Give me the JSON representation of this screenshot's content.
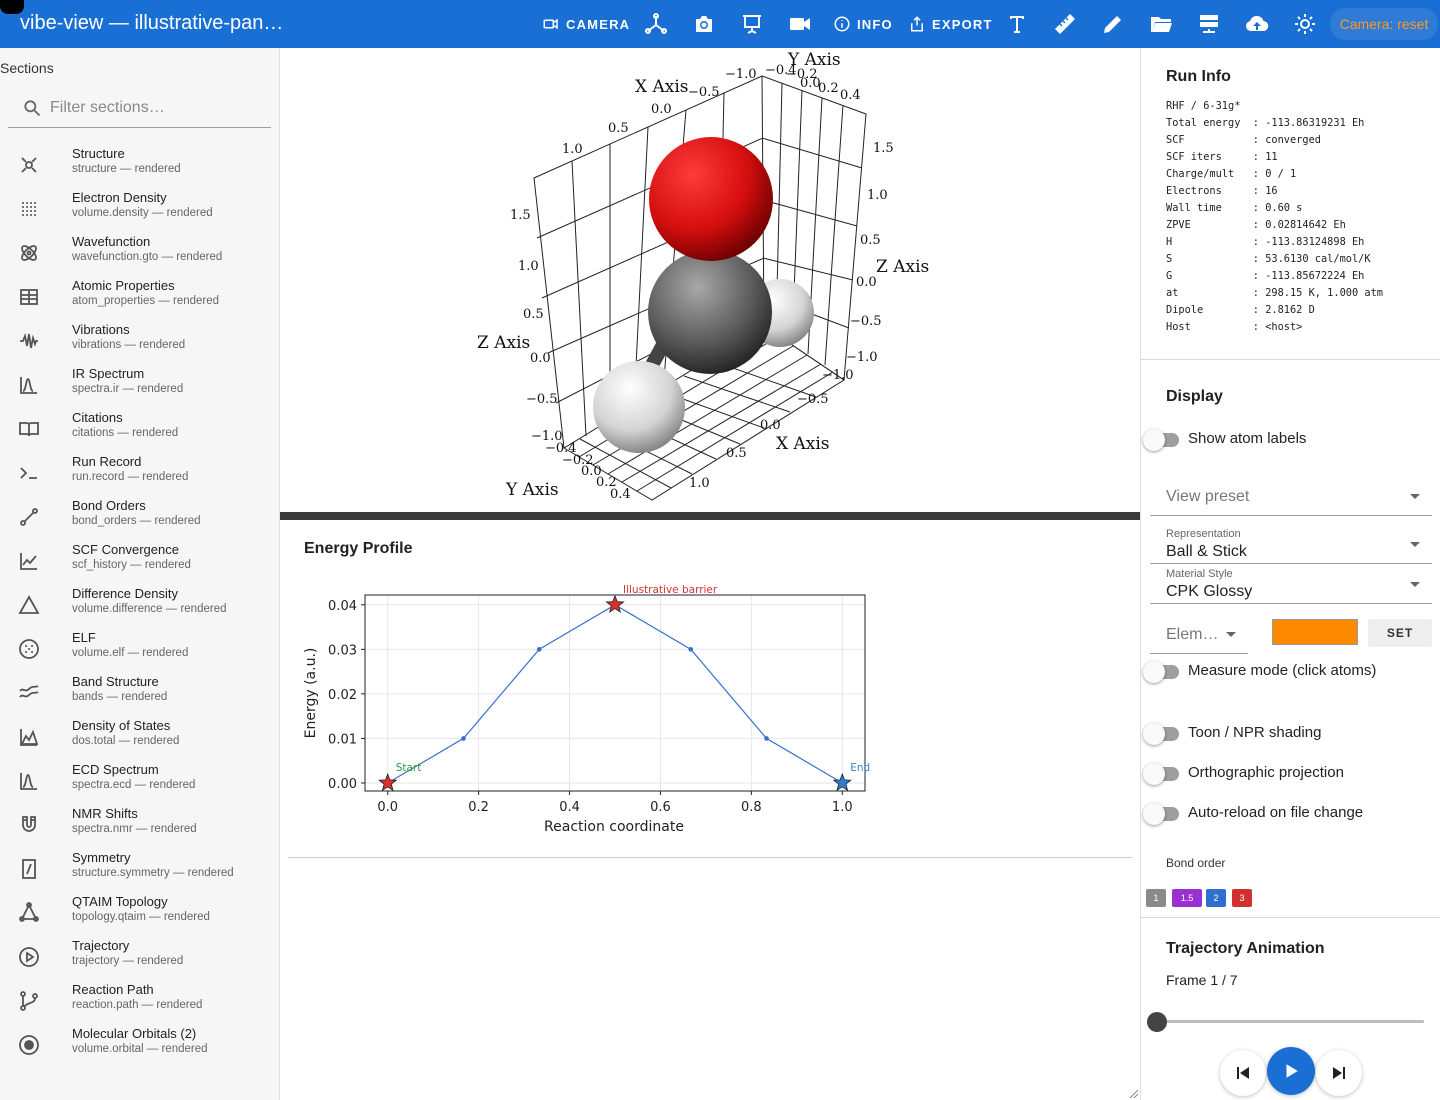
{
  "app": {
    "title": "vibe-view — illustrative-pan…"
  },
  "toolbar": {
    "camera_label": "CAMERA",
    "info_label": "INFO",
    "export_label": "EXPORT",
    "camera_reset_label": "Camera: reset",
    "icons": [
      "video-camera-icon",
      "axes-icon",
      "camera-icon",
      "presentation-icon",
      "record-icon",
      "info-icon",
      "export-icon",
      "text-icon",
      "ruler-icon",
      "pencil-icon",
      "folder-open-icon",
      "server-icon",
      "cloud-upload-icon",
      "brightness-icon"
    ]
  },
  "sidebar": {
    "title": "Sections",
    "filter_placeholder": "Filter sections…",
    "items": [
      {
        "name": "Structure",
        "sub": "structure — rendered",
        "icon": "atom-structure-icon"
      },
      {
        "name": "Electron Density",
        "sub": "volume.density — rendered",
        "icon": "dot-grid-icon"
      },
      {
        "name": "Wavefunction",
        "sub": "wavefunction.gto — rendered",
        "icon": "atom-orbit-icon"
      },
      {
        "name": "Atomic Properties",
        "sub": "atom_properties — rendered",
        "icon": "table-icon"
      },
      {
        "name": "Vibrations",
        "sub": "vibrations — rendered",
        "icon": "waveform-icon"
      },
      {
        "name": "IR Spectrum",
        "sub": "spectra.ir — rendered",
        "icon": "peak-chart-icon"
      },
      {
        "name": "Citations",
        "sub": "citations — rendered",
        "icon": "book-open-icon"
      },
      {
        "name": "Run Record",
        "sub": "run.record — rendered",
        "icon": "terminal-icon"
      },
      {
        "name": "Bond Orders",
        "sub": "bond_orders — rendered",
        "icon": "bond-icon"
      },
      {
        "name": "SCF Convergence",
        "sub": "scf_history — rendered",
        "icon": "line-chart-icon"
      },
      {
        "name": "Difference Density",
        "sub": "volume.difference — rendered",
        "icon": "triangle-icon"
      },
      {
        "name": "ELF",
        "sub": "volume.elf — rendered",
        "icon": "dotted-circle-icon"
      },
      {
        "name": "Band Structure",
        "sub": "bands — rendered",
        "icon": "bands-icon"
      },
      {
        "name": "Density of States",
        "sub": "dos.total — rendered",
        "icon": "area-chart-icon"
      },
      {
        "name": "ECD Spectrum",
        "sub": "spectra.ecd — rendered",
        "icon": "peak-chart-icon"
      },
      {
        "name": "NMR Shifts",
        "sub": "spectra.nmr — rendered",
        "icon": "magnet-icon"
      },
      {
        "name": "Symmetry",
        "sub": "structure.symmetry — rendered",
        "icon": "symmetry-icon"
      },
      {
        "name": "QTAIM Topology",
        "sub": "topology.qtaim — rendered",
        "icon": "topology-icon"
      },
      {
        "name": "Trajectory",
        "sub": "trajectory — rendered",
        "icon": "play-circle-icon"
      },
      {
        "name": "Reaction Path",
        "sub": "reaction.path — rendered",
        "icon": "branch-icon"
      },
      {
        "name": "Molecular Orbitals (2)",
        "sub": "volume.orbital — rendered",
        "icon": "orbital-icon"
      }
    ]
  },
  "viewer": {
    "axis_titles": {
      "x": "X Axis",
      "y": "Y Axis",
      "z": "Z Axis"
    },
    "colors": {
      "oxygen": "#e01010",
      "carbon": "#555555",
      "hydrogen": "#e8e8e8"
    }
  },
  "energy_profile": {
    "title": "Energy Profile",
    "chart_data": {
      "type": "line",
      "title": "",
      "xlabel": "Reaction coordinate",
      "ylabel": "Energy (a.u.)",
      "xlim": [
        -0.05,
        1.05
      ],
      "ylim": [
        -0.0018,
        0.0422
      ],
      "x": [
        0.0,
        0.1667,
        0.3333,
        0.5,
        0.6667,
        0.8333,
        1.0
      ],
      "y": [
        0.0,
        0.01,
        0.03,
        0.04,
        0.03,
        0.01,
        0.0
      ],
      "x_ticks": [
        0.0,
        0.2,
        0.4,
        0.6,
        0.8,
        1.0
      ],
      "y_ticks": [
        0.0,
        0.01,
        0.02,
        0.03,
        0.04
      ],
      "x_tick_labels": [
        "0.0",
        "0.2",
        "0.4",
        "0.6",
        "0.8",
        "1.0"
      ],
      "y_tick_labels": [
        "0.00",
        "0.01",
        "0.02",
        "0.03",
        "0.04"
      ],
      "grid": true,
      "line_color": "#3a6fd0",
      "annotations": [
        {
          "label": "Start",
          "x": 0.0,
          "y": 0.0,
          "color": "#2e9b3a",
          "marker_color": "#d63030"
        },
        {
          "label": "Illustrative barrier",
          "x": 0.5,
          "y": 0.04,
          "color": "#d63030",
          "marker_color": "#d63030"
        },
        {
          "label": "End",
          "x": 1.0,
          "y": 0.0,
          "color": "#3a84c4",
          "marker_color": "#2e7fd0"
        }
      ]
    }
  },
  "run_info": {
    "title": "Run Info",
    "lines": [
      "RHF / 6-31g*",
      "Total energy  : -113.86319231 Eh",
      "SCF           : converged",
      "SCF iters     : 11",
      "Charge/mult   : 0 / 1",
      "Electrons     : 16",
      "Wall time     : 0.60 s",
      "ZPVE          : 0.02814642 Eh",
      "H             : -113.83124898 Eh",
      "S             : 53.6130 cal/mol/K",
      "G             : -113.85672224 Eh",
      "at            : 298.15 K, 1.000 atm",
      "Dipole        : 2.8162 D",
      "Host          : <host>"
    ]
  },
  "display": {
    "title": "Display",
    "show_atom_labels": "Show atom labels",
    "view_preset_placeholder": "View preset",
    "representation_label": "Representation",
    "representation_value": "Ball & Stick",
    "material_label": "Material Style",
    "material_value": "CPK Glossy",
    "element_placeholder": "Elem…",
    "element_color": "#ff8a00",
    "set_label": "SET",
    "measure_mode": "Measure mode (click atoms)",
    "toon_shading": "Toon / NPR shading",
    "orthographic": "Orthographic projection",
    "auto_reload": "Auto-reload on file change",
    "bond_order_label": "Bond order",
    "bond_orders": [
      {
        "label": "1",
        "color": "#8a8a8a"
      },
      {
        "label": "1.5",
        "color": "#9b30d0"
      },
      {
        "label": "2",
        "color": "#2f6fd0"
      },
      {
        "label": "3",
        "color": "#d03030"
      }
    ]
  },
  "trajectory": {
    "title": "Trajectory Animation",
    "frame_label": "Frame 1 / 7",
    "frame_current": 1,
    "frame_total": 7
  }
}
